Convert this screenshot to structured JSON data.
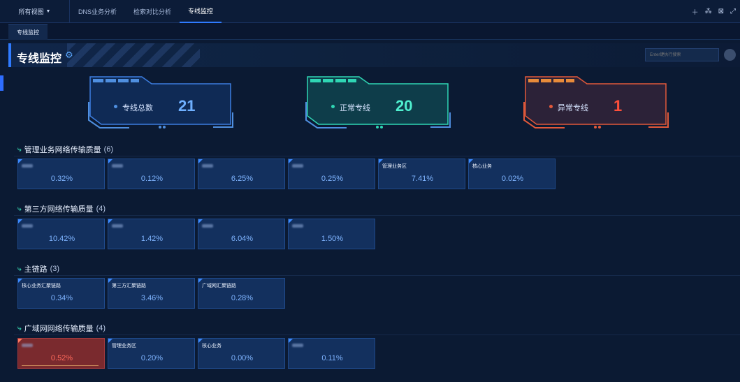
{
  "topbar": {
    "view_select": "所有视图",
    "tabs": [
      "DNS业务分析",
      "检索对比分析",
      "专线监控"
    ],
    "icons": [
      "plus-icon",
      "tree-icon",
      "fullscreen-exit-icon",
      "expand-icon"
    ]
  },
  "subtab": "专线监控",
  "header": {
    "title": "专线监控",
    "search_placeholder": "Enter键执行搜索"
  },
  "summary": [
    {
      "label": "专线总数",
      "value": "21",
      "color": "#4f8fe0"
    },
    {
      "label": "正常专线",
      "value": "20",
      "color": "#2fd6b4"
    },
    {
      "label": "异常专线",
      "value": "1",
      "color": "#e2593a"
    }
  ],
  "sections": [
    {
      "title": "管理业务网络传输质量",
      "count": "(6)",
      "tiles": [
        {
          "name": "",
          "pct": "0.32%"
        },
        {
          "name": "",
          "pct": "0.12%"
        },
        {
          "name": "",
          "pct": "6.25%"
        },
        {
          "name": "",
          "pct": "0.25%"
        },
        {
          "name": "管理业务区",
          "pct": "7.41%"
        },
        {
          "name": "核心业务",
          "pct": "0.02%"
        }
      ]
    },
    {
      "title": "第三方网络传输质量",
      "count": "(4)",
      "tiles": [
        {
          "name": "",
          "pct": "10.42%"
        },
        {
          "name": "",
          "pct": "1.42%"
        },
        {
          "name": "",
          "pct": "6.04%"
        },
        {
          "name": "",
          "pct": "1.50%"
        }
      ]
    },
    {
      "title": "主链路",
      "count": "(3)",
      "tiles": [
        {
          "name": "核心业务汇聚链路",
          "pct": "0.34%"
        },
        {
          "name": "第三方汇聚链路",
          "pct": "3.46%"
        },
        {
          "name": "广域网汇聚链路",
          "pct": "0.28%"
        }
      ]
    },
    {
      "title": "广域网网络传输质量",
      "count": "(4)",
      "tiles": [
        {
          "name": "",
          "pct": "0.52%",
          "alert": true
        },
        {
          "name": "管理业务区",
          "pct": "0.20%"
        },
        {
          "name": "核心业务",
          "pct": "0.00%"
        },
        {
          "name": "",
          "pct": "0.11%"
        }
      ]
    }
  ]
}
